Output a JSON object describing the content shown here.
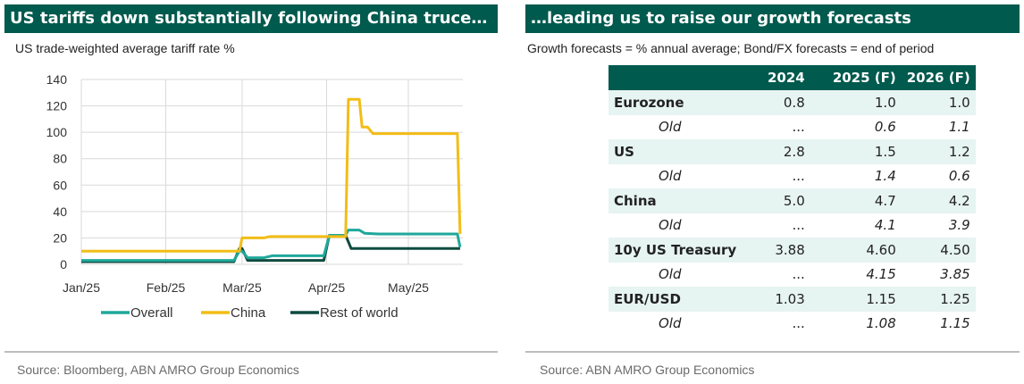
{
  "left": {
    "banner": "US tariffs down substantially following China truce…",
    "subtitle": "US trade-weighted average tariff rate %",
    "source": "Source: Bloomberg, ABN AMRO Group Economics"
  },
  "right": {
    "banner": "…leading us to raise our growth forecasts",
    "subtitle": "Growth forecasts = % annual average; Bond/FX forecasts = end of period",
    "source": "Source: ABN AMRO Group Economics"
  },
  "chart_data": {
    "type": "line",
    "title": "US trade-weighted average tariff rate %",
    "ylim": [
      0,
      140
    ],
    "yticks": [
      0,
      20,
      40,
      60,
      80,
      100,
      120,
      140
    ],
    "xlim": [
      "2025-01-01",
      "2025-05-21"
    ],
    "xticks": [
      {
        "date": "2025-01-01",
        "label": "Jan/25"
      },
      {
        "date": "2025-02-01",
        "label": "Feb/25"
      },
      {
        "date": "2025-03-01",
        "label": "Mar/25"
      },
      {
        "date": "2025-04-01",
        "label": "Apr/25"
      },
      {
        "date": "2025-05-01",
        "label": "May/25"
      }
    ],
    "grid": "horizontal",
    "legend_position": "bottom",
    "colors": {
      "Overall": "#1fa89b",
      "China": "#f2bd16",
      "Rest of world": "#0f4a3f",
      "grid": "#d9d9d9"
    },
    "series": [
      {
        "name": "Overall",
        "points": [
          [
            "2025-01-01",
            3
          ],
          [
            "2025-02-26",
            3
          ],
          [
            "2025-02-28",
            10
          ],
          [
            "2025-03-01",
            10
          ],
          [
            "2025-03-03",
            5
          ],
          [
            "2025-03-09",
            5
          ],
          [
            "2025-03-12",
            6.5
          ],
          [
            "2025-03-31",
            6.5
          ],
          [
            "2025-04-02",
            22
          ],
          [
            "2025-04-08",
            22
          ],
          [
            "2025-04-09",
            26
          ],
          [
            "2025-04-13",
            26
          ],
          [
            "2025-04-15",
            23.5
          ],
          [
            "2025-04-20",
            23
          ],
          [
            "2025-05-19",
            23
          ],
          [
            "2025-05-20",
            13
          ]
        ]
      },
      {
        "name": "China",
        "points": [
          [
            "2025-01-01",
            10
          ],
          [
            "2025-02-28",
            10
          ],
          [
            "2025-03-01",
            20
          ],
          [
            "2025-03-09",
            20
          ],
          [
            "2025-03-11",
            21
          ],
          [
            "2025-04-08",
            21
          ],
          [
            "2025-04-09",
            125
          ],
          [
            "2025-04-13",
            125
          ],
          [
            "2025-04-14",
            104
          ],
          [
            "2025-04-16",
            104
          ],
          [
            "2025-04-18",
            99
          ],
          [
            "2025-05-19",
            99
          ],
          [
            "2025-05-20",
            23
          ]
        ]
      },
      {
        "name": "Rest of world",
        "points": [
          [
            "2025-01-01",
            2
          ],
          [
            "2025-02-26",
            2
          ],
          [
            "2025-02-28",
            12
          ],
          [
            "2025-03-01",
            12
          ],
          [
            "2025-03-03",
            3
          ],
          [
            "2025-03-31",
            3
          ],
          [
            "2025-04-02",
            22
          ],
          [
            "2025-04-08",
            22
          ],
          [
            "2025-04-10",
            12
          ],
          [
            "2025-05-20",
            12
          ]
        ]
      }
    ]
  },
  "table": {
    "headers": [
      "",
      "2024",
      "2025 (F)",
      "2026 (F)"
    ],
    "rows": [
      {
        "type": "main",
        "cells": [
          "Eurozone",
          "0.8",
          "1.0",
          "1.0"
        ]
      },
      {
        "type": "old",
        "cells": [
          "Old",
          "...",
          "0.6",
          "1.1"
        ]
      },
      {
        "type": "main",
        "cells": [
          "US",
          "2.8",
          "1.5",
          "1.2"
        ]
      },
      {
        "type": "old",
        "cells": [
          "Old",
          "...",
          "1.4",
          "0.6"
        ]
      },
      {
        "type": "main",
        "cells": [
          "China",
          "5.0",
          "4.7",
          "4.2"
        ]
      },
      {
        "type": "old",
        "cells": [
          "Old",
          "...",
          "4.1",
          "3.9"
        ]
      },
      {
        "type": "main",
        "cells": [
          "10y US Treasury",
          "3.88",
          "4.60",
          "4.50"
        ]
      },
      {
        "type": "old",
        "cells": [
          "Old",
          "...",
          "4.15",
          "3.85"
        ]
      },
      {
        "type": "main",
        "cells": [
          "EUR/USD",
          "1.03",
          "1.15",
          "1.25"
        ]
      },
      {
        "type": "old",
        "cells": [
          "Old",
          "...",
          "1.08",
          "1.15"
        ]
      }
    ]
  }
}
